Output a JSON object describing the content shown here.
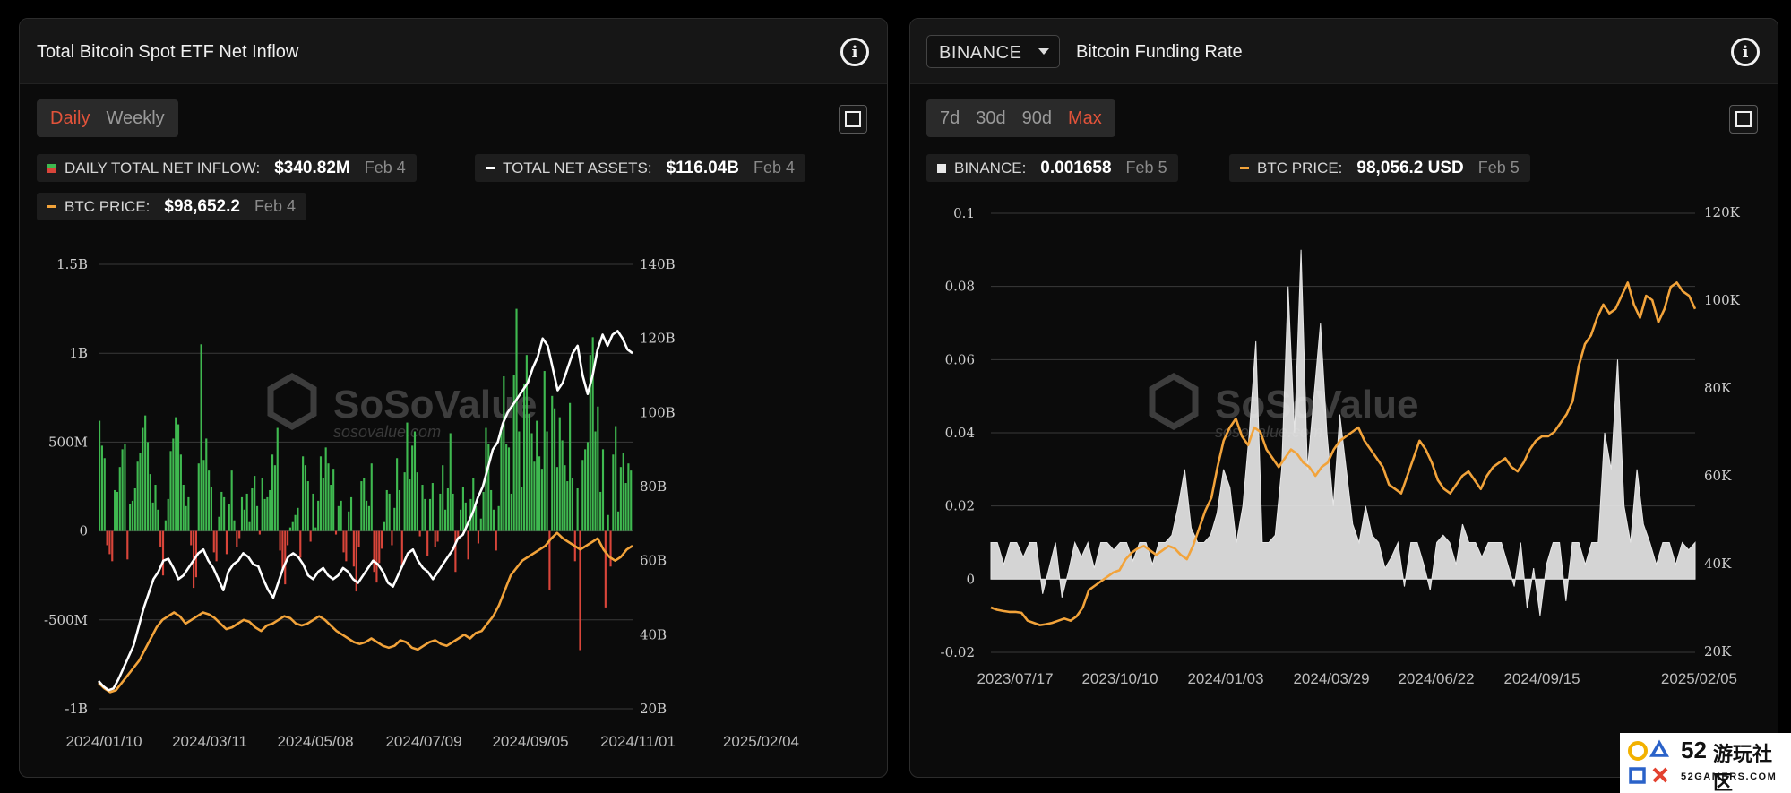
{
  "left_panel": {
    "title": "Total Bitcoin Spot ETF Net Inflow",
    "tabs": [
      "Daily",
      "Weekly"
    ],
    "active_tab": "Daily",
    "legend": [
      {
        "label": "DAILY TOTAL NET INFLOW:",
        "value": "$340.82M",
        "date": "Feb 4",
        "color": "#3fb950"
      },
      {
        "label": "TOTAL NET ASSETS:",
        "value": "$116.04B",
        "date": "Feb 4",
        "color": "#ffffff"
      },
      {
        "label": "BTC PRICE:",
        "value": "$98,652.2",
        "date": "Feb 4",
        "color": "#f2a33a"
      }
    ]
  },
  "right_panel": {
    "exchange": "BINANCE",
    "title": "Bitcoin Funding Rate",
    "tabs": [
      "7d",
      "30d",
      "90d",
      "Max"
    ],
    "active_tab": "Max",
    "legend": [
      {
        "label": "BINANCE:",
        "value": "0.001658",
        "date": "Feb 5",
        "color": "#e8e8e8"
      },
      {
        "label": "BTC PRICE:",
        "value": "98,056.2 USD",
        "date": "Feb 5",
        "color": "#f2a33a"
      }
    ]
  },
  "watermark": {
    "name": "SoSoValue",
    "url": "sosovalue.com"
  },
  "site_badge": {
    "num": "52",
    "name": "游玩社区",
    "url": "52GAMERS.COM"
  },
  "colors": {
    "positive": "#3fb950",
    "negative": "#d9453a",
    "assets": "#ffffff",
    "btc": "#f2a33a",
    "funding": "#e6e6e6",
    "grid": "#3a3a3a"
  },
  "chart_data": [
    {
      "type": "bar",
      "title": "Total Bitcoin Spot ETF Net Inflow",
      "x_tick_labels": [
        "2024/01/10",
        "2024/03/11",
        "2024/05/08",
        "2024/07/09",
        "2024/09/05",
        "2024/11/01",
        "2025/02/04"
      ],
      "y_left": {
        "ticks": [
          "-1B",
          "-500M",
          "0",
          "500M",
          "1B",
          "1.5B"
        ],
        "min": -1000,
        "max": 1500,
        "unit": "M USD"
      },
      "y_right": {
        "ticks": [
          "20B",
          "40B",
          "60B",
          "80B",
          "100B",
          "120B",
          "140B"
        ],
        "min": 20,
        "max": 140,
        "unit": "B USD"
      },
      "grid": true,
      "series": [
        {
          "name": "DAILY TOTAL NET INFLOW",
          "kind": "bar",
          "axis": "left",
          "values": [
            620,
            480,
            410,
            -80,
            -130,
            -170,
            230,
            220,
            360,
            460,
            490,
            -160,
            150,
            170,
            240,
            390,
            440,
            580,
            650,
            500,
            320,
            160,
            260,
            120,
            -90,
            -250,
            60,
            180,
            450,
            520,
            640,
            600,
            430,
            260,
            140,
            190,
            -80,
            -320,
            -260,
            380,
            1050,
            400,
            520,
            340,
            250,
            -120,
            -170,
            80,
            220,
            190,
            -130,
            150,
            340,
            60,
            -90,
            -40,
            190,
            120,
            210,
            50,
            240,
            310,
            140,
            -20,
            300,
            180,
            190,
            230,
            430,
            370,
            580,
            -110,
            -210,
            -300,
            -80,
            20,
            50,
            90,
            130,
            -150,
            420,
            370,
            280,
            -60,
            210,
            20,
            170,
            420,
            300,
            470,
            380,
            260,
            350,
            -20,
            140,
            170,
            -120,
            -170,
            110,
            190,
            -200,
            -340,
            -90,
            280,
            300,
            170,
            140,
            380,
            -230,
            -290,
            -180,
            -100,
            50,
            230,
            210,
            -80,
            130,
            410,
            230,
            -190,
            330,
            610,
            290,
            480,
            560,
            330,
            -30,
            260,
            180,
            -140,
            180,
            270,
            -90,
            -60,
            210,
            370,
            120,
            240,
            550,
            210,
            -230,
            -50,
            120,
            250,
            160,
            -160,
            180,
            300,
            140,
            -70,
            70,
            220,
            580,
            490,
            230,
            120,
            -110,
            140,
            560,
            870,
            490,
            470,
            210,
            880,
            1250,
            560,
            250,
            830,
            990,
            660,
            550,
            390,
            620,
            420,
            350,
            900,
            560,
            -330,
            760,
            690,
            360,
            640,
            510,
            370,
            280,
            720,
            300,
            -170,
            240,
            -670,
            400,
            460,
            500,
            990,
            1090,
            560,
            700,
            220,
            460,
            -430,
            90,
            -200,
            430,
            590,
            110,
            360,
            440,
            270,
            380,
            340
          ],
          "colors": {
            "positive": "#3fb950",
            "negative": "#d9453a"
          }
        },
        {
          "name": "TOTAL NET ASSETS",
          "kind": "line",
          "axis": "right",
          "color": "#ffffff",
          "values": [
            27.5,
            26,
            25,
            25.5,
            28,
            31,
            34,
            37,
            42,
            47,
            51,
            55,
            57,
            60,
            60.5,
            58,
            55,
            56,
            58,
            60,
            62,
            63,
            60,
            58,
            55,
            52,
            57,
            59,
            60,
            62,
            61,
            59,
            58.5,
            55,
            52,
            50,
            54,
            58,
            61,
            62,
            61,
            59,
            56,
            55,
            57,
            58,
            56,
            55,
            56,
            58,
            57,
            55,
            54,
            56,
            58,
            60,
            59,
            57,
            54,
            53,
            56,
            59,
            62,
            63,
            60,
            58,
            57,
            55,
            57,
            59,
            61,
            63,
            66,
            67,
            70,
            73,
            77,
            80,
            85,
            90,
            92,
            97,
            100,
            102,
            104,
            106,
            108,
            112,
            115,
            120,
            118,
            112,
            106,
            108,
            112,
            116,
            118,
            110,
            105,
            110,
            117,
            121,
            118,
            121,
            122,
            120,
            117,
            116
          ]
        },
        {
          "name": "BTC PRICE",
          "kind": "line",
          "axis": "right",
          "color": "#f2a33a",
          "values": [
            27,
            25.5,
            24.5,
            25,
            27,
            29,
            31,
            33,
            36,
            39,
            42,
            44,
            45,
            46,
            45,
            43,
            44,
            45,
            46,
            45.5,
            44.5,
            43,
            41.5,
            42,
            43,
            44,
            43.5,
            42,
            41,
            42.5,
            43,
            44,
            45,
            44.5,
            43,
            42.5,
            43,
            44,
            45,
            44,
            42.5,
            41,
            40,
            39,
            38,
            37.5,
            38,
            39,
            38,
            37,
            36.5,
            37,
            38.5,
            38,
            36.5,
            36,
            37,
            38,
            38.5,
            37.5,
            37,
            38,
            39,
            40,
            39,
            40.5,
            41,
            43,
            45,
            48,
            52,
            56,
            58,
            60,
            61,
            62,
            63,
            64,
            66,
            67.5,
            66,
            65,
            64,
            63,
            64,
            65,
            66,
            63,
            61,
            60,
            61,
            63,
            64
          ]
        }
      ]
    },
    {
      "type": "area",
      "title": "Bitcoin Funding Rate",
      "x_tick_labels": [
        "2023/07/17",
        "2023/10/10",
        "2024/01/03",
        "2024/03/29",
        "2024/06/22",
        "2024/09/15",
        "2025/02/05"
      ],
      "y_left": {
        "ticks": [
          "-0.02",
          "0",
          "0.02",
          "0.04",
          "0.06",
          "0.08",
          "0.1"
        ],
        "min": -0.02,
        "max": 0.1
      },
      "y_right": {
        "ticks": [
          "20K",
          "40K",
          "60K",
          "80K",
          "100K",
          "120K"
        ],
        "min": 20000,
        "max": 120000
      },
      "grid": true,
      "series": [
        {
          "name": "BINANCE",
          "kind": "area",
          "axis": "left",
          "color": "#e6e6e6",
          "values": [
            0.01,
            0.01,
            0.004,
            0.01,
            0.01,
            0.006,
            0.01,
            0.01,
            -0.004,
            0.003,
            0.01,
            -0.005,
            0.002,
            0.01,
            0.006,
            0.01,
            0.003,
            0.01,
            0.01,
            0.008,
            0.01,
            0.01,
            0.005,
            0.01,
            0.01,
            0.004,
            0.01,
            0.01,
            0.012,
            0.02,
            0.03,
            0.014,
            0.01,
            0.01,
            0.012,
            0.018,
            0.03,
            0.025,
            0.01,
            0.02,
            0.04,
            0.065,
            0.01,
            0.01,
            0.012,
            0.03,
            0.08,
            0.04,
            0.09,
            0.03,
            0.05,
            0.07,
            0.04,
            0.02,
            0.045,
            0.03,
            0.015,
            0.01,
            0.02,
            0.012,
            0.01,
            0.003,
            0.006,
            0.01,
            -0.002,
            0.01,
            0.01,
            0.004,
            -0.003,
            0.01,
            0.012,
            0.01,
            0.004,
            0.015,
            0.01,
            0.01,
            0.006,
            0.01,
            0.01,
            0.01,
            0.004,
            -0.002,
            0.01,
            -0.008,
            0.003,
            -0.01,
            0.004,
            0.01,
            0.01,
            -0.006,
            0.01,
            0.01,
            0.004,
            0.01,
            0.01,
            0.04,
            0.03,
            0.06,
            0.02,
            0.01,
            0.03,
            0.015,
            0.01,
            0.004,
            0.01,
            0.01,
            0.004,
            0.01,
            0.008,
            0.01
          ]
        },
        {
          "name": "BTC PRICE",
          "kind": "line",
          "axis": "right",
          "color": "#f2a33a",
          "values": [
            30000,
            29500,
            29200,
            29000,
            29000,
            28800,
            27000,
            26500,
            26000,
            26200,
            26500,
            27000,
            27500,
            27000,
            28000,
            30000,
            34000,
            35000,
            36000,
            37000,
            38000,
            38500,
            41000,
            42500,
            43500,
            44000,
            43000,
            42000,
            43000,
            44000,
            43500,
            42000,
            41000,
            44000,
            48000,
            52000,
            55000,
            62000,
            68000,
            71000,
            73000,
            69000,
            67000,
            71000,
            70000,
            66000,
            64000,
            62000,
            64000,
            66000,
            65000,
            63000,
            62000,
            60000,
            62000,
            63000,
            66000,
            68000,
            69000,
            70000,
            71000,
            68000,
            66000,
            64000,
            62000,
            58000,
            57000,
            56000,
            60000,
            64000,
            68000,
            66000,
            63000,
            59000,
            57000,
            56000,
            58000,
            60000,
            61000,
            59000,
            57000,
            60000,
            62000,
            63000,
            64000,
            62000,
            61000,
            63000,
            66000,
            68000,
            69000,
            69000,
            70000,
            72000,
            74000,
            77000,
            85000,
            90000,
            92000,
            96000,
            99000,
            97000,
            98000,
            101000,
            104000,
            99000,
            96000,
            101000,
            100000,
            95000,
            98000,
            103000,
            104000,
            102000,
            101000,
            98000
          ]
        }
      ]
    }
  ]
}
